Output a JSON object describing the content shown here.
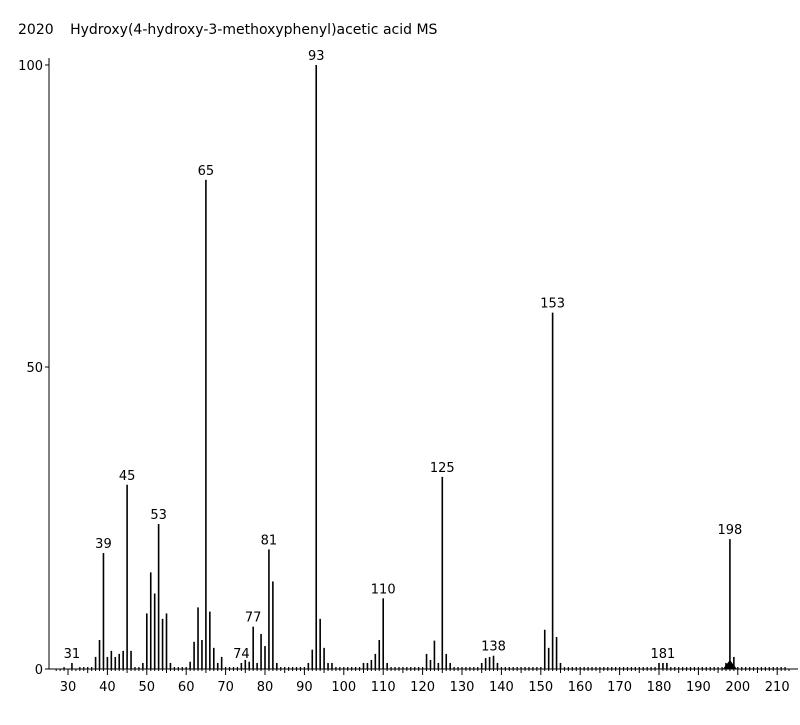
{
  "chart_data": {
    "type": "bar",
    "title_number": "2020",
    "title": "Hydroxy(4-hydroxy-3-methoxyphenyl)acetic acid MS",
    "xlabel": "",
    "ylabel": "",
    "xlim": [
      26,
      214
    ],
    "ylim": [
      0,
      101
    ],
    "x_ticks": [
      30,
      40,
      50,
      60,
      70,
      80,
      90,
      100,
      110,
      120,
      130,
      140,
      150,
      160,
      170,
      180,
      190,
      200,
      210
    ],
    "y_ticks": [
      0,
      50,
      100
    ],
    "peaks": [
      {
        "x": 31,
        "y": 1.0,
        "label": "31"
      },
      {
        "x": 37,
        "y": 2.0
      },
      {
        "x": 38,
        "y": 4.8
      },
      {
        "x": 39,
        "y": 19.2,
        "label": "39"
      },
      {
        "x": 40,
        "y": 2.0
      },
      {
        "x": 41,
        "y": 3.0
      },
      {
        "x": 42,
        "y": 2.0
      },
      {
        "x": 43,
        "y": 2.5
      },
      {
        "x": 44,
        "y": 3.0
      },
      {
        "x": 45,
        "y": 30.5,
        "label": "45"
      },
      {
        "x": 46,
        "y": 3.0
      },
      {
        "x": 49,
        "y": 1.0
      },
      {
        "x": 50,
        "y": 9.2
      },
      {
        "x": 51,
        "y": 16.0
      },
      {
        "x": 52,
        "y": 12.5
      },
      {
        "x": 53,
        "y": 24.0,
        "label": "53"
      },
      {
        "x": 54,
        "y": 8.3
      },
      {
        "x": 55,
        "y": 9.2
      },
      {
        "x": 56,
        "y": 1.0
      },
      {
        "x": 61,
        "y": 1.2
      },
      {
        "x": 62,
        "y": 4.5
      },
      {
        "x": 63,
        "y": 10.2
      },
      {
        "x": 64,
        "y": 4.8
      },
      {
        "x": 65,
        "y": 81.0,
        "label": "65"
      },
      {
        "x": 66,
        "y": 9.5
      },
      {
        "x": 67,
        "y": 3.5
      },
      {
        "x": 68,
        "y": 1.0
      },
      {
        "x": 69,
        "y": 2.0
      },
      {
        "x": 74,
        "y": 1.0,
        "label": "74"
      },
      {
        "x": 75,
        "y": 1.5
      },
      {
        "x": 76,
        "y": 1.2
      },
      {
        "x": 77,
        "y": 7.0,
        "label": "77"
      },
      {
        "x": 78,
        "y": 1.0
      },
      {
        "x": 79,
        "y": 5.8
      },
      {
        "x": 80,
        "y": 3.8
      },
      {
        "x": 81,
        "y": 19.8,
        "label": "81"
      },
      {
        "x": 82,
        "y": 14.5
      },
      {
        "x": 83,
        "y": 1.0
      },
      {
        "x": 91,
        "y": 1.0
      },
      {
        "x": 92,
        "y": 3.2
      },
      {
        "x": 93,
        "y": 100.0,
        "label": "93"
      },
      {
        "x": 94,
        "y": 8.3
      },
      {
        "x": 95,
        "y": 3.5
      },
      {
        "x": 96,
        "y": 1.0
      },
      {
        "x": 97,
        "y": 1.0
      },
      {
        "x": 105,
        "y": 1.0
      },
      {
        "x": 106,
        "y": 1.0
      },
      {
        "x": 107,
        "y": 1.5
      },
      {
        "x": 108,
        "y": 2.5
      },
      {
        "x": 109,
        "y": 4.8
      },
      {
        "x": 110,
        "y": 11.7,
        "label": "110"
      },
      {
        "x": 111,
        "y": 1.0
      },
      {
        "x": 121,
        "y": 2.5
      },
      {
        "x": 122,
        "y": 1.5
      },
      {
        "x": 123,
        "y": 4.7
      },
      {
        "x": 124,
        "y": 1.0
      },
      {
        "x": 125,
        "y": 31.8,
        "label": "125"
      },
      {
        "x": 126,
        "y": 2.5
      },
      {
        "x": 127,
        "y": 1.0
      },
      {
        "x": 135,
        "y": 1.0
      },
      {
        "x": 136,
        "y": 1.8
      },
      {
        "x": 137,
        "y": 2.0
      },
      {
        "x": 138,
        "y": 2.2,
        "label": "138"
      },
      {
        "x": 139,
        "y": 1.0
      },
      {
        "x": 151,
        "y": 6.5
      },
      {
        "x": 152,
        "y": 3.5
      },
      {
        "x": 153,
        "y": 59.0,
        "label": "153"
      },
      {
        "x": 154,
        "y": 5.3
      },
      {
        "x": 155,
        "y": 1.0
      },
      {
        "x": 180,
        "y": 1.0
      },
      {
        "x": 181,
        "y": 1.0,
        "label": "181"
      },
      {
        "x": 182,
        "y": 1.0
      },
      {
        "x": 197,
        "y": 1.0
      },
      {
        "x": 198,
        "y": 21.5,
        "label": "198"
      },
      {
        "x": 199,
        "y": 2.0
      }
    ],
    "minor_peaks": [
      29,
      33,
      34,
      35,
      36,
      47,
      48,
      57,
      58,
      59,
      60,
      70,
      71,
      72,
      73,
      84,
      85,
      86,
      87,
      88,
      89,
      90,
      98,
      99,
      100,
      101,
      102,
      103,
      104,
      112,
      113,
      114,
      115,
      116,
      117,
      118,
      119,
      120,
      128,
      129,
      130,
      131,
      132,
      133,
      134,
      140,
      141,
      142,
      143,
      144,
      145,
      146,
      147,
      148,
      149,
      150,
      156,
      157,
      158,
      159,
      160,
      161,
      162,
      163,
      164,
      165,
      166,
      167,
      168,
      169,
      170,
      171,
      172,
      173,
      174,
      175,
      176,
      177,
      178,
      179,
      183,
      184,
      185,
      186,
      187,
      188,
      189,
      190,
      191,
      192,
      193,
      194,
      195,
      196,
      200,
      201,
      202,
      203,
      204,
      205,
      206,
      207,
      208,
      209,
      210,
      211,
      212
    ],
    "molecular_ion_marker_x": 198,
    "colors": {
      "axis": "#000000",
      "bar": "#000000",
      "background": "#ffffff"
    }
  }
}
